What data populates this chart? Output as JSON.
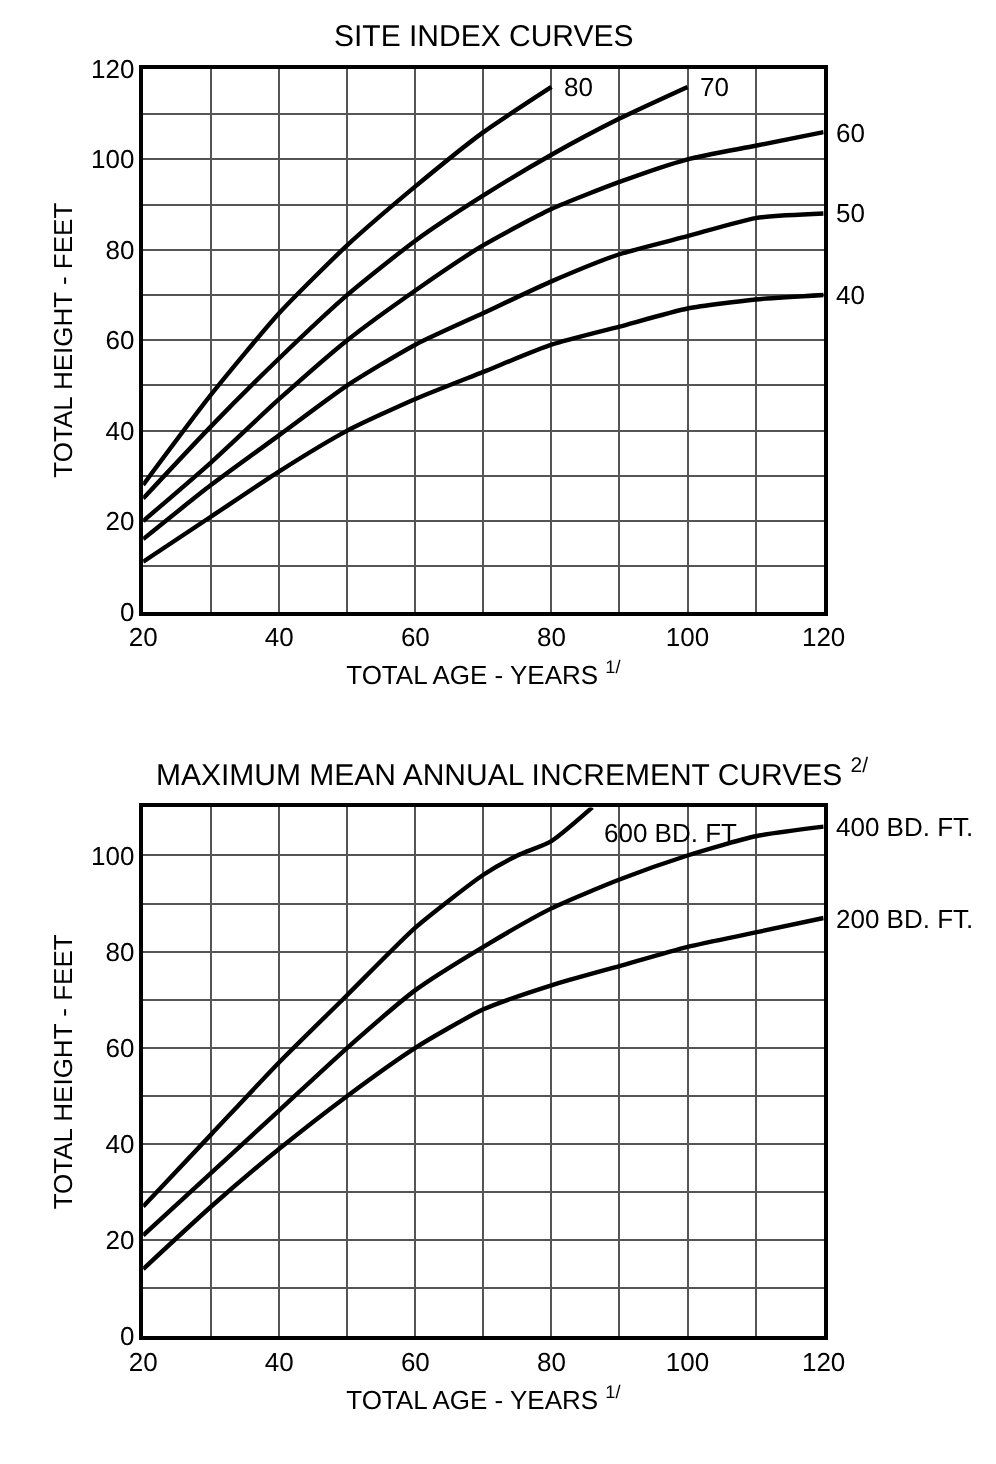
{
  "chart_data": [
    {
      "type": "line",
      "title": "SITE INDEX CURVES",
      "xlabel": "TOTAL AGE - YEARS $^{1/}$",
      "ylabel": "TOTAL HEIGHT - FEET",
      "xlim": [
        20,
        120
      ],
      "ylim": [
        0,
        120
      ],
      "xticks": [
        20,
        {
          "value": 30,
          "label": null
        },
        40,
        {
          "value": 50,
          "label": null
        },
        60,
        {
          "value": 70,
          "label": null
        },
        80,
        {
          "value": 90,
          "label": null
        },
        100,
        {
          "value": 110,
          "label": null
        },
        120
      ],
      "yticks": [
        0,
        {
          "value": 10,
          "label": null
        },
        20,
        {
          "value": 30,
          "label": null
        },
        40,
        {
          "value": 50,
          "label": null
        },
        60,
        {
          "value": 70,
          "label": null
        },
        80,
        {
          "value": 90,
          "label": null
        },
        100,
        {
          "value": 110,
          "label": null
        },
        120
      ],
      "grid": true,
      "legend": false,
      "marker": "none",
      "line_style": "solid",
      "series": [
        {
          "name": "80",
          "color": "#000000",
          "x": [
            20,
            30,
            40,
            50,
            60,
            70,
            80
          ],
          "values": [
            28,
            48,
            66,
            81,
            94,
            106,
            116
          ]
        },
        {
          "name": "70",
          "color": "#000000",
          "x": [
            20,
            30,
            40,
            50,
            60,
            70,
            80,
            90,
            100
          ],
          "values": [
            25,
            41,
            56,
            70,
            82,
            92,
            101,
            109,
            116
          ]
        },
        {
          "name": "60",
          "color": "#000000",
          "x": [
            20,
            30,
            40,
            50,
            60,
            70,
            80,
            90,
            100,
            110,
            120
          ],
          "values": [
            20,
            33,
            47,
            60,
            71,
            81,
            89,
            95,
            100,
            103,
            106
          ]
        },
        {
          "name": "50",
          "color": "#000000",
          "x": [
            20,
            30,
            40,
            50,
            60,
            70,
            80,
            90,
            100,
            110,
            120
          ],
          "values": [
            16,
            28,
            39,
            50,
            59,
            66,
            73,
            79,
            83,
            87,
            88
          ]
        },
        {
          "name": "40",
          "color": "#000000",
          "x": [
            20,
            30,
            40,
            50,
            60,
            70,
            80,
            90,
            100,
            110,
            120
          ],
          "values": [
            11,
            21,
            31,
            40,
            47,
            53,
            59,
            63,
            67,
            69,
            70
          ]
        }
      ]
    },
    {
      "type": "line",
      "title": "MAXIMUM MEAN ANNUAL INCREMENT CURVES $^{2/}$",
      "xlabel": "TOTAL AGE - YEARS $^{1/}$",
      "ylabel": "TOTAL HEIGHT - FEET",
      "xlim": [
        20,
        120
      ],
      "ylim": [
        0,
        110
      ],
      "xticks": [
        20,
        {
          "value": 30,
          "label": null
        },
        40,
        {
          "value": 50,
          "label": null
        },
        60,
        {
          "value": 70,
          "label": null
        },
        80,
        {
          "value": 90,
          "label": null
        },
        100,
        {
          "value": 110,
          "label": null
        },
        120
      ],
      "yticks": [
        0,
        {
          "value": 10,
          "label": null
        },
        20,
        {
          "value": 30,
          "label": null
        },
        40,
        {
          "value": 50,
          "label": null
        },
        60,
        {
          "value": 70,
          "label": null
        },
        80,
        {
          "value": 90,
          "label": null
        },
        100,
        {
          "value": 110,
          "label": null
        }
      ],
      "grid": true,
      "legend": false,
      "marker": "none",
      "line_style": "solid",
      "series": [
        {
          "name": "600 BD. FT.",
          "color": "#000000",
          "x": [
            20,
            30,
            40,
            50,
            60,
            70,
            75,
            80,
            86
          ],
          "values": [
            27,
            42,
            57,
            71,
            85,
            96,
            100,
            103,
            110
          ]
        },
        {
          "name": "400 BD. FT.",
          "color": "#000000",
          "x": [
            20,
            30,
            40,
            50,
            60,
            70,
            80,
            90,
            100,
            110,
            120
          ],
          "values": [
            21,
            34,
            47,
            60,
            72,
            81,
            89,
            95,
            100,
            104,
            106
          ]
        },
        {
          "name": "200 BD. FT.",
          "color": "#000000",
          "x": [
            20,
            30,
            40,
            50,
            60,
            70,
            80,
            90,
            100,
            110,
            120
          ],
          "values": [
            14,
            27,
            39,
            50,
            60,
            68,
            73,
            77,
            81,
            84,
            87
          ]
        }
      ]
    }
  ]
}
